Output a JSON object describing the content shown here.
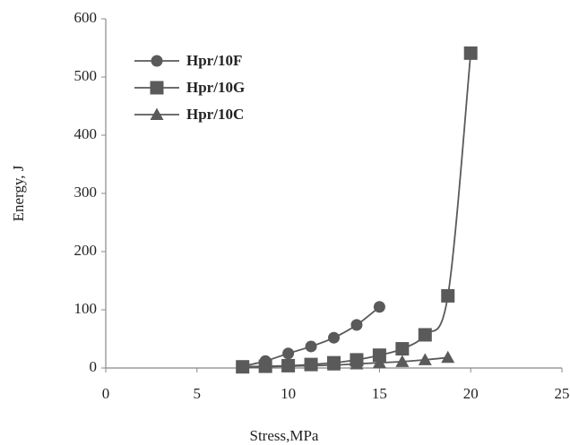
{
  "chart_data": {
    "type": "line",
    "xlabel": "Stress,MPa",
    "ylabel": "Energy, J",
    "xlim": [
      0,
      25
    ],
    "xticks": [
      0,
      5,
      10,
      15,
      20,
      25
    ],
    "ylim": [
      0,
      600
    ],
    "yticks": [
      0,
      100,
      200,
      300,
      400,
      500,
      600
    ],
    "legend": "upper left",
    "smooth": true,
    "series": [
      {
        "name": "Hpr/10F",
        "color": "#5a5a5a",
        "marker": "circle",
        "x": [
          7.5,
          8.75,
          10,
          11.25,
          12.5,
          13.75,
          15
        ],
        "values": [
          3,
          12,
          25,
          37,
          52,
          74,
          105
        ]
      },
      {
        "name": "Hpr/10G",
        "color": "#5a5a5a",
        "marker": "square",
        "x": [
          7.5,
          8.75,
          10,
          11.25,
          12.5,
          13.75,
          15,
          16.25,
          17.5,
          18.75,
          20
        ],
        "values": [
          2,
          3,
          4,
          6,
          9,
          14,
          22,
          33,
          57,
          124,
          541
        ]
      },
      {
        "name": "Hpr/10C",
        "color": "#5a5a5a",
        "marker": "triangle",
        "x": [
          7.5,
          8.75,
          10,
          11.25,
          12.5,
          13.75,
          15,
          16.25,
          17.5,
          18.75
        ],
        "values": [
          1,
          2,
          3,
          4,
          5,
          7,
          9,
          11,
          14,
          18
        ]
      }
    ]
  }
}
